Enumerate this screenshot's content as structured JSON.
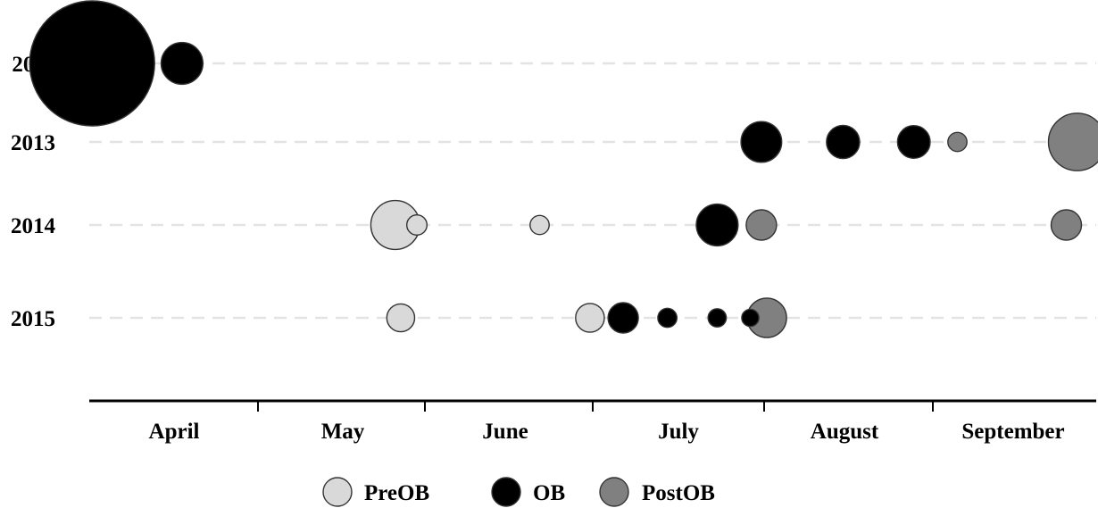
{
  "chart_data": {
    "type": "bubble",
    "title": "",
    "xlabel": "",
    "ylabel": "",
    "x_ticks": [
      "April",
      "May",
      "June",
      "July",
      "August",
      "September"
    ],
    "y_categories": [
      "2011",
      "2013",
      "2014",
      "2015"
    ],
    "grid": "horizontal dashed lines per year",
    "legend_position": "bottom-center",
    "series": [
      {
        "name": "PreOB",
        "color": "#d9d9d9",
        "points": [
          {
            "x": "May 26",
            "y": "2014",
            "size": 1.3
          },
          {
            "x": "May 30",
            "y": "2014",
            "size": 0.22
          },
          {
            "x": "June 21",
            "y": "2014",
            "size": 0.2
          },
          {
            "x": "May 27",
            "y": "2015",
            "size": 0.42
          },
          {
            "x": "June 30",
            "y": "2015",
            "size": 0.45
          }
        ]
      },
      {
        "name": "OB",
        "color": "#000000",
        "points": [
          {
            "x": "April 1",
            "y": "2011",
            "size": 8.5
          },
          {
            "x": "April 17",
            "y": "2011",
            "size": 0.95
          },
          {
            "x": "July 31",
            "y": "2013",
            "size": 0.9
          },
          {
            "x": "August 15",
            "y": "2013",
            "size": 0.6
          },
          {
            "x": "August 28",
            "y": "2013",
            "size": 0.58
          },
          {
            "x": "July 23",
            "y": "2014",
            "size": 0.95
          },
          {
            "x": "July 6",
            "y": "2015",
            "size": 0.5
          },
          {
            "x": "July 14",
            "y": "2015",
            "size": 0.2
          },
          {
            "x": "July 23",
            "y": "2015",
            "size": 0.18
          },
          {
            "x": "July 29",
            "y": "2015",
            "size": 0.16
          }
        ]
      },
      {
        "name": "PostOB",
        "color": "#808080",
        "points": [
          {
            "x": "September 5",
            "y": "2013",
            "size": 0.2
          },
          {
            "x": "September 27",
            "y": "2013",
            "size": 1.8
          },
          {
            "x": "July 31",
            "y": "2014",
            "size": 0.5
          },
          {
            "x": "September 25",
            "y": "2014",
            "size": 0.5
          },
          {
            "x": "August 1",
            "y": "2015",
            "size": 0.85
          }
        ]
      }
    ]
  }
}
